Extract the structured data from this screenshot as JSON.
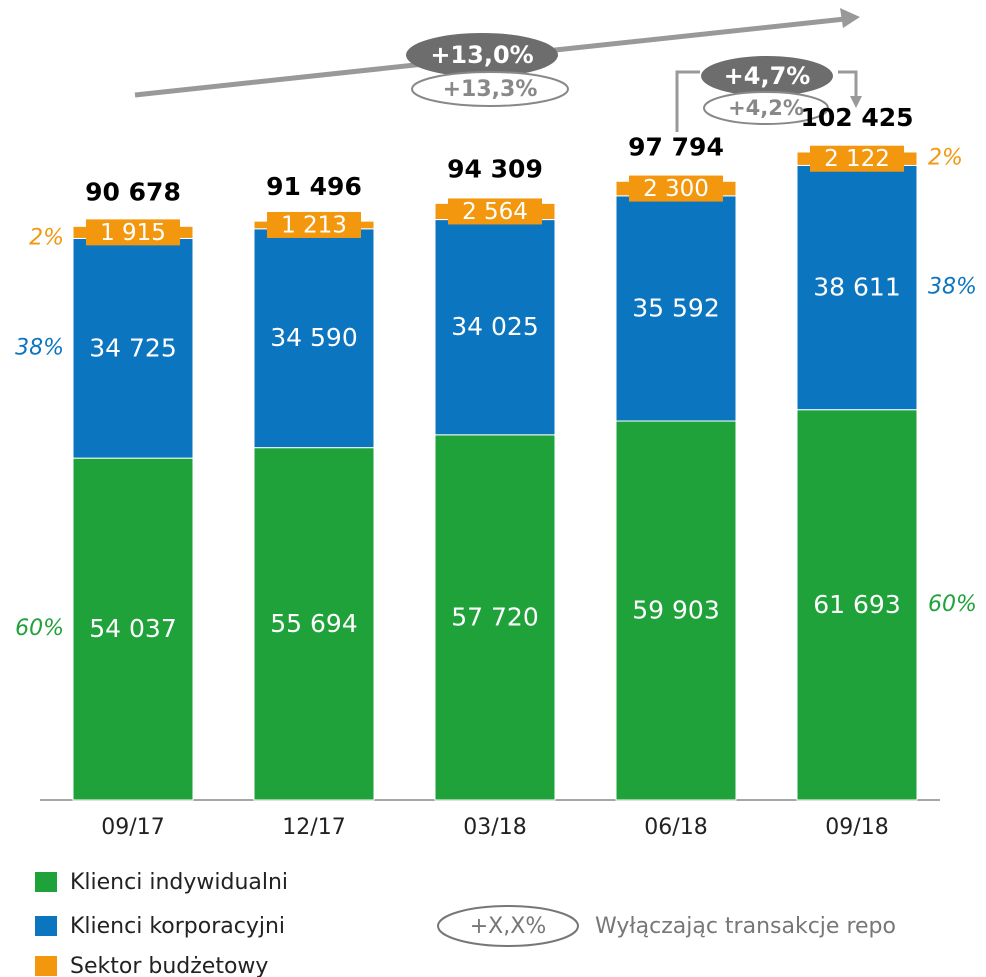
{
  "chart_data": {
    "type": "stacked_bar",
    "categories": [
      "09/17",
      "12/17",
      "03/18",
      "06/18",
      "09/18"
    ],
    "series": [
      {
        "name": "Klienci indywidualni",
        "color": "#1fa23a",
        "values": [
          54037,
          55694,
          57720,
          59903,
          61693
        ],
        "value_labels": [
          "54 037",
          "55 694",
          "57 720",
          "59 903",
          "61 693"
        ],
        "left_label": "60%",
        "right_label": "60%"
      },
      {
        "name": "Klienci korporacyjni",
        "color": "#0c75c0",
        "values": [
          34725,
          34590,
          34025,
          35592,
          38611
        ],
        "value_labels": [
          "34 725",
          "34 590",
          "34 025",
          "35 592",
          "38 611"
        ],
        "left_label": "38%",
        "right_label": "38%"
      },
      {
        "name": "Sektor budżetowy",
        "color": "#f3970e",
        "values": [
          1915,
          1213,
          2564,
          2300,
          2122
        ],
        "value_labels": [
          "1 915",
          "1 213",
          "2 564",
          "2 300",
          "2 122"
        ],
        "left_label": "2%",
        "right_label": "2%"
      }
    ],
    "totals": [
      90678,
      91496,
      94309,
      97794,
      102425
    ],
    "total_labels": [
      "90 678",
      "91 496",
      "94 309",
      "97 794",
      "102 425"
    ],
    "growth": {
      "total": "+13,0%",
      "total_ex_repo": "+13,3%",
      "quarter": "+4,7%",
      "quarter_ex_repo": "+4,2%"
    },
    "note": {
      "symbol": "+X,X%",
      "text": "Wyłączając transakcje repo"
    }
  }
}
